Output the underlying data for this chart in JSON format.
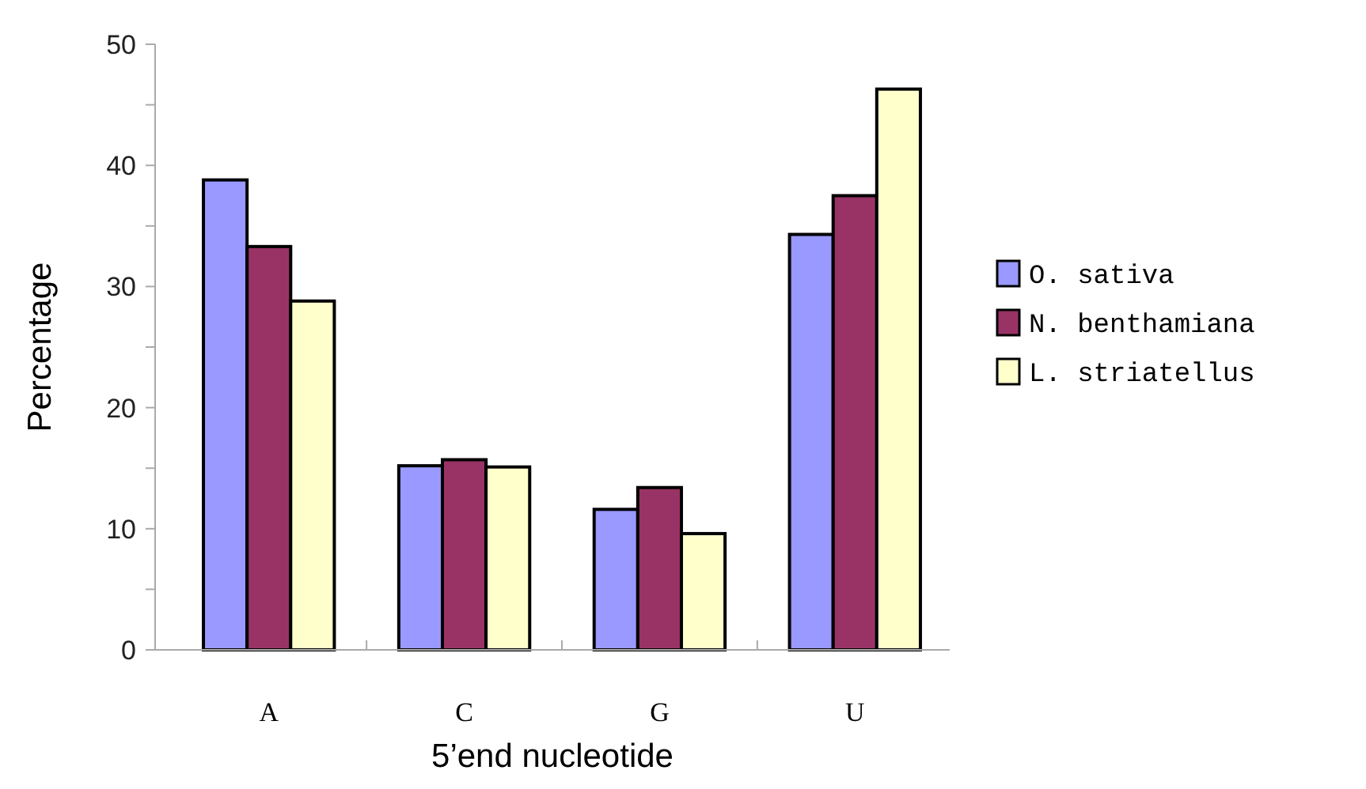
{
  "chart_data": {
    "type": "bar",
    "xlabel": "5’end nucleotide",
    "ylabel": "Percentage",
    "categories": [
      "A",
      "C",
      "G",
      "U"
    ],
    "series": [
      {
        "name": "O. sativa",
        "color": "#9999ff",
        "values": [
          38.8,
          15.2,
          11.6,
          34.3
        ]
      },
      {
        "name": "N. benthamiana",
        "color": "#993366",
        "values": [
          33.3,
          15.7,
          13.4,
          37.5
        ]
      },
      {
        "name": "L. striatellus",
        "color": "#ffffcc",
        "values": [
          28.8,
          15.1,
          9.6,
          46.3
        ]
      }
    ],
    "ylim": [
      0,
      50
    ],
    "yticks": [
      0,
      {
        "value": 5,
        "label": null
      },
      10,
      {
        "value": 15,
        "label": null
      },
      20,
      {
        "value": 25,
        "label": null
      },
      30,
      {
        "value": 35,
        "label": null
      },
      40,
      {
        "value": 45,
        "label": null
      },
      50
    ],
    "grid": false,
    "legend": "right"
  }
}
